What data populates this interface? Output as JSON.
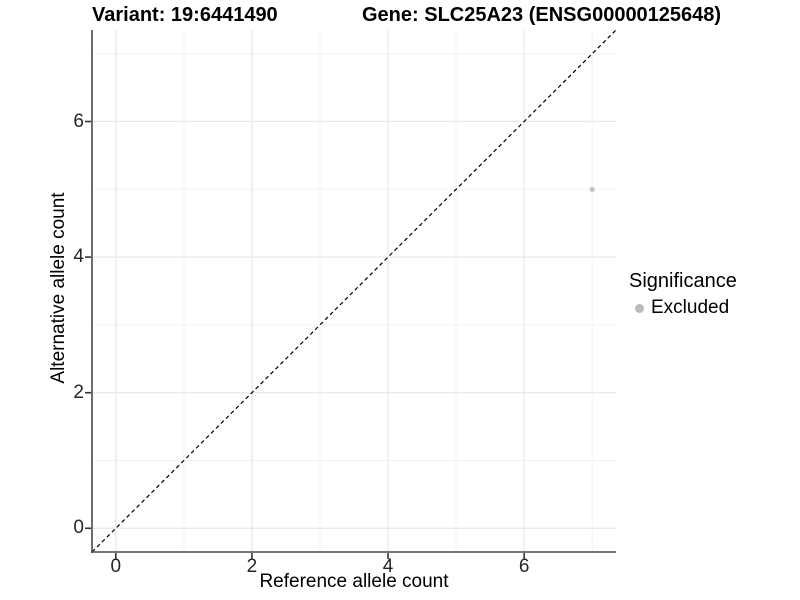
{
  "chart_data": {
    "type": "scatter",
    "title_left": "Variant: 19:6441490",
    "title_right": "Gene: SLC25A23 (ENSG00000125648)",
    "xlabel": "Reference allele count",
    "ylabel": "Alternative allele count",
    "xlim": [
      -0.35,
      7.35
    ],
    "ylim": [
      -0.35,
      7.35
    ],
    "x_ticks": [
      0,
      2,
      4,
      6
    ],
    "y_ticks": [
      0,
      2,
      4,
      6
    ],
    "grid": {
      "major": [
        0,
        2,
        4,
        6
      ],
      "minor": [
        1,
        3,
        5,
        7
      ],
      "major_color": "#e7e7e7",
      "minor_color": "#f3f3f3"
    },
    "points": [
      {
        "x": 7,
        "y": 5,
        "series": "Excluded",
        "color": "#c1c1c1",
        "radius": 2.6
      }
    ],
    "reference_line": {
      "slope": 1,
      "intercept": 0,
      "style": "dashed",
      "color": "#000000"
    },
    "legend": {
      "title": "Significance",
      "position": "right",
      "entries": [
        {
          "label": "Excluded",
          "color": "#b9b9b9",
          "shape": "circle"
        }
      ]
    },
    "colors": {
      "axis_line": "#4a4a4a",
      "tick_mark": "#333333",
      "background": "#ffffff"
    }
  }
}
